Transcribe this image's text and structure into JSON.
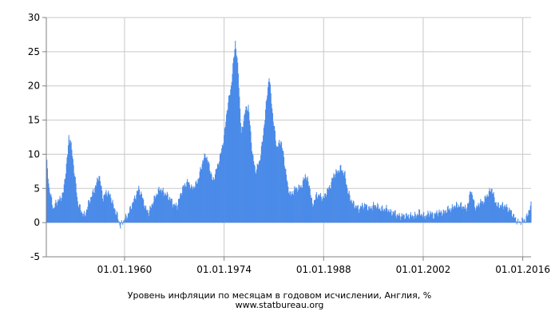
{
  "chart_data": {
    "type": "area",
    "title": "Уровень инфляции по месяцам в годовом исчислении, Англия, %",
    "source": "www.statbureau.org",
    "xlabel": "",
    "ylabel": "",
    "xlim": [
      "1949-01",
      "2017-03"
    ],
    "ylim": [
      -5,
      30
    ],
    "grid": true,
    "legend": "none",
    "y_ticks": [
      "-5",
      "0",
      "5",
      "10",
      "15",
      "20",
      "25",
      "30"
    ],
    "x_ticks": [
      {
        "label": "01.01.1960",
        "date": "1960-01"
      },
      {
        "label": "01.01.1974",
        "date": "1974-01"
      },
      {
        "label": "01.01.1988",
        "date": "1988-01"
      },
      {
        "label": "01.01.2002",
        "date": "2002-01"
      },
      {
        "label": "01.01.2016",
        "date": "2016-01"
      }
    ],
    "series": [
      {
        "color": "#4a8ae8",
        "points": [
          [
            "1949-01",
            9.5
          ],
          [
            "1949-06",
            5.0
          ],
          [
            "1950-01",
            2.0
          ],
          [
            "1950-06",
            3.0
          ],
          [
            "1951-01",
            3.5
          ],
          [
            "1951-06",
            4.5
          ],
          [
            "1952-01",
            10.0
          ],
          [
            "1952-03",
            12.5
          ],
          [
            "1952-06",
            12.0
          ],
          [
            "1953-01",
            7.0
          ],
          [
            "1953-06",
            3.0
          ],
          [
            "1954-01",
            1.5
          ],
          [
            "1954-06",
            1.0
          ],
          [
            "1955-01",
            3.0
          ],
          [
            "1955-06",
            4.0
          ],
          [
            "1956-01",
            5.5
          ],
          [
            "1956-06",
            7.0
          ],
          [
            "1957-01",
            3.5
          ],
          [
            "1957-06",
            4.5
          ],
          [
            "1958-01",
            4.0
          ],
          [
            "1958-06",
            2.5
          ],
          [
            "1959-01",
            1.0
          ],
          [
            "1959-06",
            -0.5
          ],
          [
            "1960-01",
            0.5
          ],
          [
            "1960-06",
            1.0
          ],
          [
            "1961-01",
            2.5
          ],
          [
            "1961-06",
            3.5
          ],
          [
            "1962-01",
            5.0
          ],
          [
            "1962-06",
            4.0
          ],
          [
            "1963-01",
            2.0
          ],
          [
            "1963-06",
            1.5
          ],
          [
            "1964-01",
            3.0
          ],
          [
            "1964-06",
            4.0
          ],
          [
            "1965-01",
            5.0
          ],
          [
            "1965-06",
            4.5
          ],
          [
            "1966-01",
            4.0
          ],
          [
            "1966-06",
            3.5
          ],
          [
            "1967-01",
            2.5
          ],
          [
            "1967-06",
            2.5
          ],
          [
            "1968-01",
            4.5
          ],
          [
            "1968-06",
            5.5
          ],
          [
            "1969-01",
            6.0
          ],
          [
            "1969-06",
            5.0
          ],
          [
            "1970-01",
            5.5
          ],
          [
            "1970-06",
            6.5
          ],
          [
            "1971-01",
            9.0
          ],
          [
            "1971-06",
            10.0
          ],
          [
            "1972-01",
            8.0
          ],
          [
            "1972-06",
            6.0
          ],
          [
            "1973-01",
            8.0
          ],
          [
            "1973-06",
            9.5
          ],
          [
            "1974-01",
            12.5
          ],
          [
            "1974-06",
            16.5
          ],
          [
            "1975-01",
            20.0
          ],
          [
            "1975-08",
            26.5
          ],
          [
            "1976-01",
            22.0
          ],
          [
            "1976-06",
            13.0
          ],
          [
            "1977-01",
            16.5
          ],
          [
            "1977-06",
            17.0
          ],
          [
            "1978-01",
            10.0
          ],
          [
            "1978-06",
            7.5
          ],
          [
            "1979-01",
            9.0
          ],
          [
            "1979-06",
            12.0
          ],
          [
            "1980-05",
            21.5
          ],
          [
            "1980-12",
            15.0
          ],
          [
            "1981-06",
            11.0
          ],
          [
            "1982-01",
            12.0
          ],
          [
            "1982-06",
            9.5
          ],
          [
            "1983-01",
            5.0
          ],
          [
            "1983-06",
            4.0
          ],
          [
            "1984-01",
            5.0
          ],
          [
            "1984-06",
            5.0
          ],
          [
            "1985-01",
            5.5
          ],
          [
            "1985-06",
            7.0
          ],
          [
            "1986-01",
            5.5
          ],
          [
            "1986-06",
            2.5
          ],
          [
            "1987-01",
            4.0
          ],
          [
            "1987-06",
            4.0
          ],
          [
            "1988-01",
            3.5
          ],
          [
            "1988-06",
            4.5
          ],
          [
            "1989-01",
            5.5
          ],
          [
            "1989-06",
            7.0
          ],
          [
            "1990-01",
            7.5
          ],
          [
            "1990-06",
            8.0
          ],
          [
            "1991-01",
            7.0
          ],
          [
            "1991-06",
            4.5
          ],
          [
            "1992-01",
            3.0
          ],
          [
            "1992-06",
            2.5
          ],
          [
            "1993-01",
            2.0
          ],
          [
            "1993-06",
            2.5
          ],
          [
            "1994-01",
            2.5
          ],
          [
            "1994-06",
            2.0
          ],
          [
            "1995-01",
            2.5
          ],
          [
            "1995-06",
            2.5
          ],
          [
            "1996-01",
            2.0
          ],
          [
            "1996-06",
            2.0
          ],
          [
            "1997-01",
            2.0
          ],
          [
            "1997-06",
            1.5
          ],
          [
            "1998-01",
            1.5
          ],
          [
            "1998-06",
            1.0
          ],
          [
            "1999-01",
            1.0
          ],
          [
            "1999-06",
            1.0
          ],
          [
            "2000-01",
            1.0
          ],
          [
            "2000-06",
            1.0
          ],
          [
            "2001-01",
            1.0
          ],
          [
            "2001-06",
            1.5
          ],
          [
            "2002-01",
            1.0
          ],
          [
            "2002-06",
            1.0
          ],
          [
            "2003-01",
            1.5
          ],
          [
            "2003-06",
            1.0
          ],
          [
            "2004-01",
            1.5
          ],
          [
            "2004-06",
            1.5
          ],
          [
            "2005-01",
            1.5
          ],
          [
            "2005-06",
            2.0
          ],
          [
            "2006-01",
            2.0
          ],
          [
            "2006-06",
            2.5
          ],
          [
            "2007-01",
            2.5
          ],
          [
            "2007-06",
            2.5
          ],
          [
            "2008-01",
            2.0
          ],
          [
            "2008-06",
            3.0
          ],
          [
            "2008-09",
            5.0
          ],
          [
            "2009-01",
            3.5
          ],
          [
            "2009-06",
            2.0
          ],
          [
            "2010-01",
            3.0
          ],
          [
            "2010-06",
            3.0
          ],
          [
            "2011-01",
            4.0
          ],
          [
            "2011-09",
            5.0
          ],
          [
            "2012-01",
            3.5
          ],
          [
            "2012-06",
            2.5
          ],
          [
            "2013-01",
            2.5
          ],
          [
            "2013-06",
            2.5
          ],
          [
            "2014-01",
            2.0
          ],
          [
            "2014-06",
            1.5
          ],
          [
            "2015-01",
            0.5
          ],
          [
            "2015-06",
            0.0
          ],
          [
            "2016-01",
            0.3
          ],
          [
            "2016-06",
            0.5
          ],
          [
            "2016-09",
            1.0
          ],
          [
            "2016-12",
            2.0
          ],
          [
            "2017-03",
            2.5
          ]
        ]
      }
    ]
  }
}
